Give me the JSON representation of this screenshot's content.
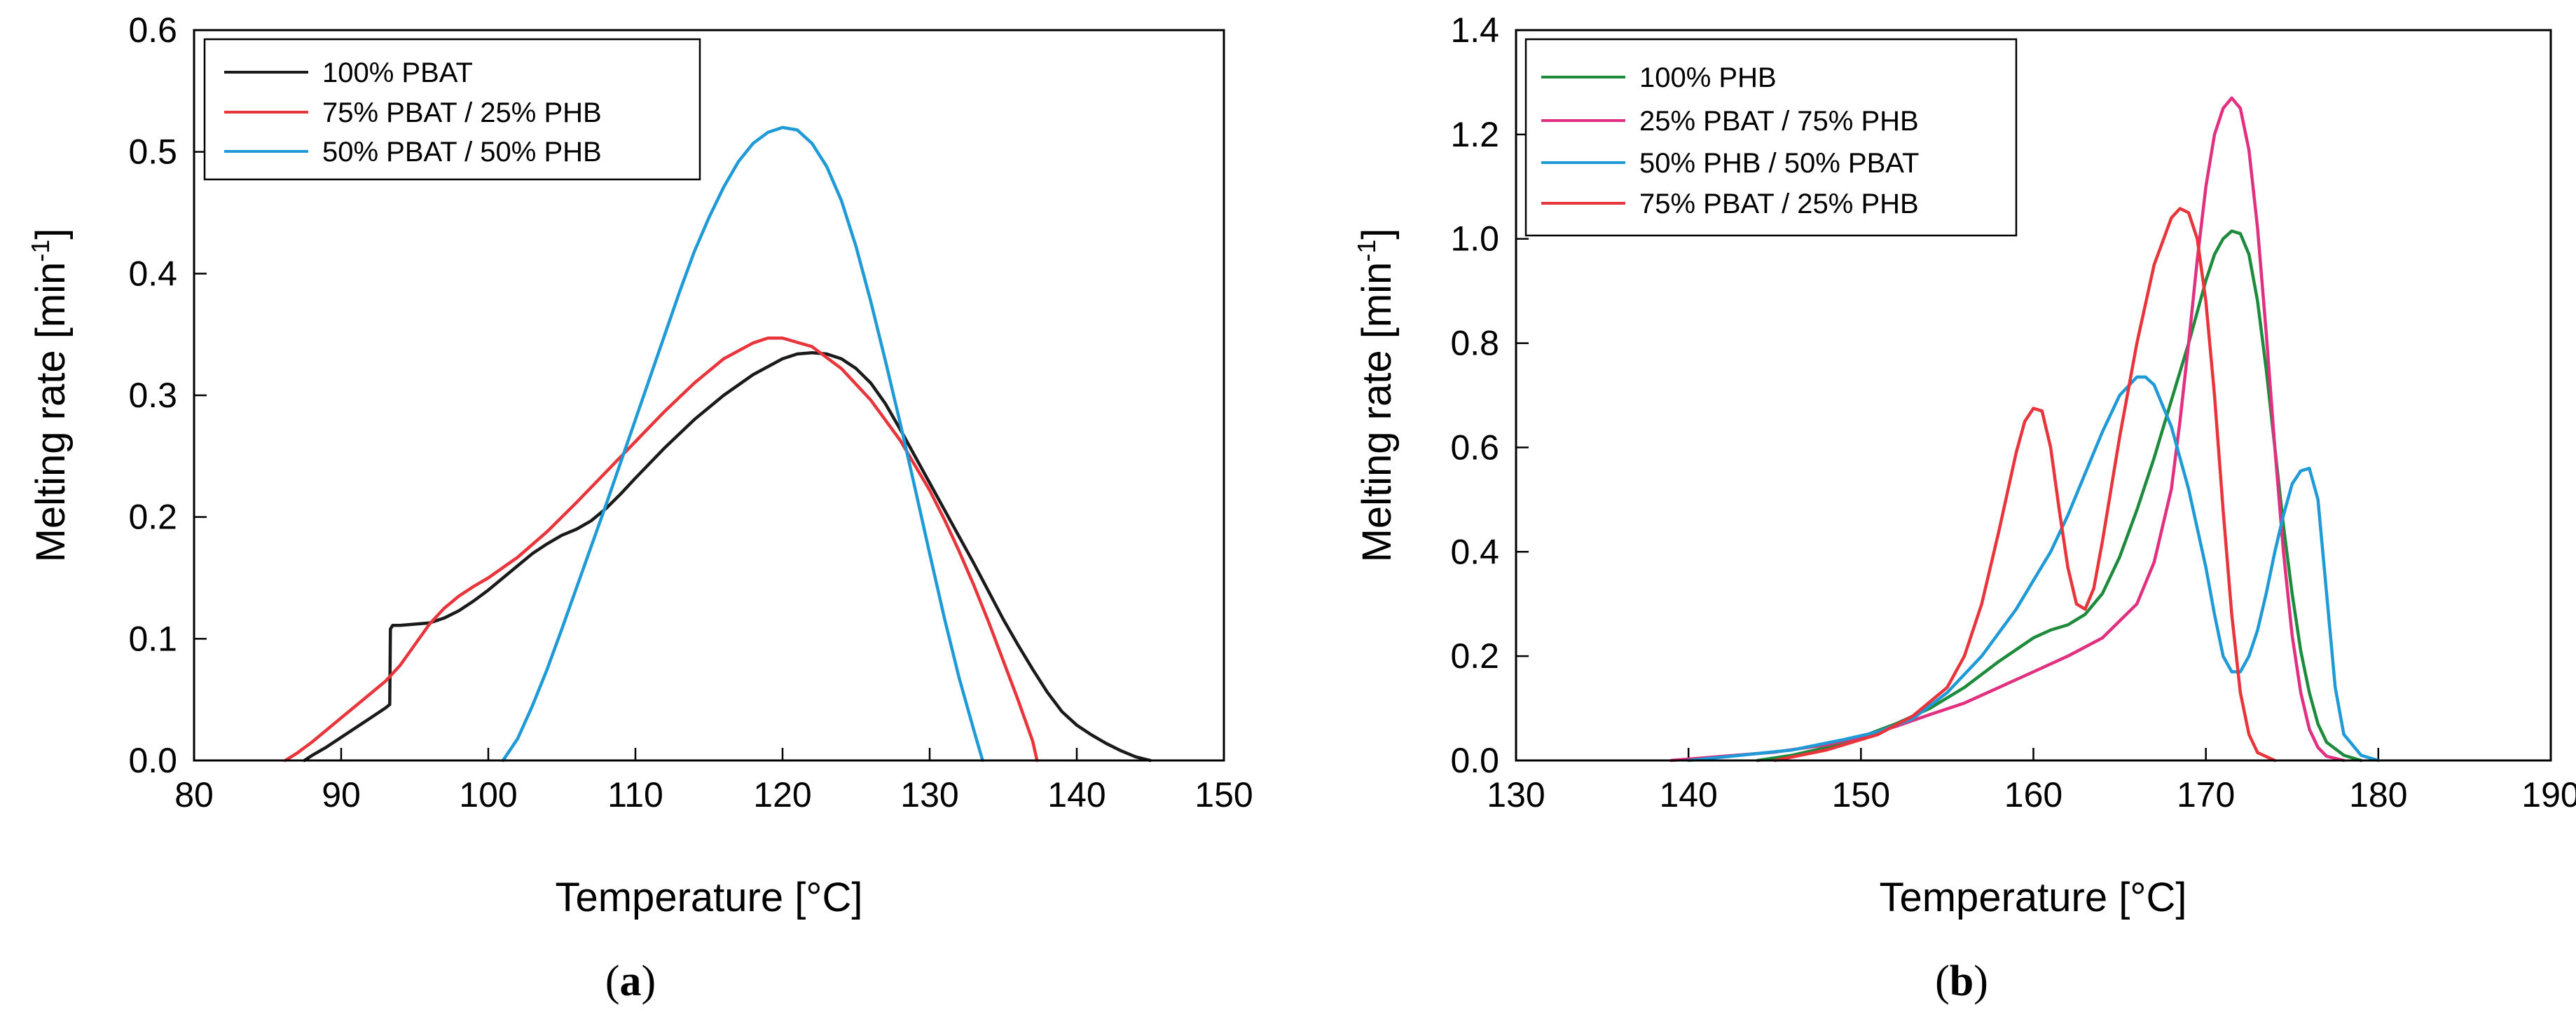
{
  "chart_data": [
    {
      "id": "a",
      "type": "line",
      "caption_open": "(",
      "caption_letter": "a",
      "caption_close": ")",
      "xlabel": "Temperature [°C]",
      "ylabel_main": "Melting rate [min",
      "ylabel_exp": "-1",
      "ylabel_close": "]",
      "xlim": [
        80,
        150
      ],
      "ylim": [
        0,
        0.6
      ],
      "xticks": [
        80,
        90,
        100,
        110,
        120,
        130,
        140,
        150
      ],
      "yticks": [
        0.0,
        0.1,
        0.2,
        0.3,
        0.4,
        0.5,
        0.6
      ],
      "ytick_decimals": 1,
      "legend_position": "top-left",
      "series": [
        {
          "name": "100% PBAT",
          "color": "#1a1a1a",
          "x": [
            87.5,
            88,
            89,
            90,
            91,
            92,
            93,
            93.3,
            93.35,
            93.5,
            94,
            95,
            96,
            97,
            98,
            99,
            100,
            101,
            102,
            103,
            104,
            105,
            106,
            107,
            108,
            109,
            110,
            112,
            114,
            116,
            118,
            120,
            121,
            122,
            123,
            124,
            125,
            126,
            127,
            128,
            129,
            130,
            131,
            132,
            133,
            134,
            135,
            136,
            137,
            138,
            139,
            140,
            141,
            142,
            143,
            144,
            145
          ],
          "y": [
            0.0,
            0.004,
            0.011,
            0.019,
            0.027,
            0.035,
            0.043,
            0.046,
            0.108,
            0.111,
            0.111,
            0.112,
            0.113,
            0.117,
            0.123,
            0.131,
            0.14,
            0.15,
            0.16,
            0.17,
            0.178,
            0.185,
            0.19,
            0.197,
            0.207,
            0.219,
            0.232,
            0.257,
            0.28,
            0.3,
            0.317,
            0.33,
            0.334,
            0.335,
            0.334,
            0.33,
            0.322,
            0.31,
            0.293,
            0.272,
            0.25,
            0.228,
            0.206,
            0.184,
            0.162,
            0.139,
            0.116,
            0.095,
            0.075,
            0.056,
            0.04,
            0.029,
            0.021,
            0.014,
            0.008,
            0.003,
            0.0
          ]
        },
        {
          "name": "75% PBAT / 25% PHB",
          "color": "#e8343b",
          "x": [
            86.2,
            87,
            88,
            89,
            90,
            91,
            92,
            93,
            94,
            95,
            96,
            97,
            98,
            99,
            100,
            102,
            104,
            106,
            108,
            110,
            112,
            114,
            116,
            118,
            119,
            120,
            122,
            124,
            126,
            128,
            130,
            131,
            132,
            133,
            134,
            135,
            136,
            137,
            137.3
          ],
          "y": [
            0.0,
            0.006,
            0.015,
            0.025,
            0.035,
            0.045,
            0.055,
            0.065,
            0.078,
            0.095,
            0.112,
            0.125,
            0.135,
            0.143,
            0.15,
            0.167,
            0.188,
            0.212,
            0.237,
            0.262,
            0.287,
            0.31,
            0.33,
            0.343,
            0.347,
            0.347,
            0.34,
            0.322,
            0.296,
            0.263,
            0.222,
            0.198,
            0.172,
            0.144,
            0.114,
            0.082,
            0.05,
            0.016,
            0.0
          ]
        },
        {
          "name": "50% PBAT / 50% PHB",
          "color": "#1f9ad6",
          "x": [
            101.0,
            102,
            103,
            104,
            105,
            106,
            107,
            108,
            109,
            110,
            111,
            112,
            113,
            114,
            115,
            116,
            117,
            118,
            119,
            120,
            121,
            122,
            123,
            124,
            125,
            126,
            127,
            128,
            129,
            130,
            131,
            132,
            133,
            133.6
          ],
          "y": [
            0.0,
            0.018,
            0.045,
            0.075,
            0.108,
            0.142,
            0.176,
            0.21,
            0.245,
            0.28,
            0.315,
            0.35,
            0.385,
            0.418,
            0.446,
            0.471,
            0.492,
            0.507,
            0.516,
            0.52,
            0.518,
            0.507,
            0.488,
            0.46,
            0.422,
            0.377,
            0.328,
            0.277,
            0.224,
            0.17,
            0.117,
            0.068,
            0.025,
            0.0
          ]
        }
      ]
    },
    {
      "id": "b",
      "type": "line",
      "caption_open": "(",
      "caption_letter": "b",
      "caption_close": ")",
      "xlabel": "Temperature [°C]",
      "ylabel_main": "Melting rate [min",
      "ylabel_exp": "-1",
      "ylabel_close": "]",
      "xlim": [
        130,
        190
      ],
      "ylim": [
        0,
        1.4
      ],
      "xticks": [
        130,
        140,
        150,
        160,
        170,
        180,
        190
      ],
      "yticks": [
        0.0,
        0.2,
        0.4,
        0.6,
        0.8,
        1.0,
        1.2,
        1.4
      ],
      "ytick_decimals": 1,
      "legend_position": "top-left",
      "series": [
        {
          "name": "100% PHB",
          "color": "#1e8a3c",
          "x": [
            144,
            146,
            148,
            150,
            152,
            154,
            156,
            158,
            160,
            161,
            162,
            163,
            164,
            165,
            166,
            167,
            168,
            169,
            170,
            170.5,
            171,
            171.5,
            172,
            172.5,
            173,
            173.5,
            174,
            174.5,
            175,
            175.5,
            176,
            176.5,
            177,
            178,
            179
          ],
          "y": [
            0.0,
            0.01,
            0.025,
            0.045,
            0.07,
            0.1,
            0.14,
            0.19,
            0.235,
            0.25,
            0.26,
            0.28,
            0.32,
            0.39,
            0.48,
            0.58,
            0.69,
            0.8,
            0.92,
            0.97,
            1.0,
            1.015,
            1.01,
            0.97,
            0.88,
            0.75,
            0.6,
            0.45,
            0.32,
            0.21,
            0.13,
            0.07,
            0.035,
            0.01,
            0.0
          ]
        },
        {
          "name": "25% PBAT / 75% PHB",
          "color": "#e0307f",
          "x": [
            139,
            142,
            145,
            148,
            150,
            152,
            154,
            156,
            158,
            160,
            162,
            164,
            166,
            167,
            168,
            168.5,
            169,
            169.5,
            170,
            170.5,
            171,
            171.5,
            172,
            172.5,
            173,
            173.5,
            174,
            174.5,
            175,
            175.5,
            176,
            176.5,
            177,
            178
          ],
          "y": [
            0.0,
            0.008,
            0.016,
            0.03,
            0.045,
            0.065,
            0.088,
            0.11,
            0.14,
            0.17,
            0.2,
            0.235,
            0.3,
            0.38,
            0.52,
            0.65,
            0.8,
            0.96,
            1.1,
            1.2,
            1.25,
            1.27,
            1.25,
            1.17,
            1.02,
            0.82,
            0.6,
            0.4,
            0.24,
            0.13,
            0.06,
            0.025,
            0.008,
            0.0
          ]
        },
        {
          "name": "50% PHB / 50% PBAT",
          "color": "#1f9ad6",
          "x": [
            140,
            143,
            146,
            149,
            151,
            153,
            155,
            157,
            159,
            161,
            162,
            163,
            164,
            165,
            166,
            166.5,
            167,
            168,
            169,
            170,
            170.5,
            171,
            171.5,
            172,
            172.5,
            173,
            173.5,
            174,
            174.5,
            175,
            175.5,
            176,
            176.5,
            177,
            177.5,
            178,
            179,
            180
          ],
          "y": [
            0.0,
            0.01,
            0.02,
            0.04,
            0.055,
            0.08,
            0.13,
            0.2,
            0.29,
            0.4,
            0.47,
            0.55,
            0.63,
            0.7,
            0.735,
            0.735,
            0.72,
            0.64,
            0.52,
            0.37,
            0.28,
            0.2,
            0.17,
            0.17,
            0.2,
            0.25,
            0.32,
            0.4,
            0.47,
            0.53,
            0.555,
            0.56,
            0.5,
            0.32,
            0.14,
            0.05,
            0.01,
            0.0
          ]
        },
        {
          "name": "75% PBAT / 25% PHB",
          "color": "#e8343b",
          "x": [
            145,
            148,
            151,
            153,
            155,
            156,
            157,
            158,
            159,
            159.5,
            160,
            160.5,
            161,
            161.5,
            162,
            162.5,
            163,
            163.5,
            164,
            165,
            166,
            167,
            168,
            168.5,
            169,
            169.5,
            170,
            170.5,
            171,
            171.5,
            172,
            172.5,
            173,
            174
          ],
          "y": [
            0.0,
            0.02,
            0.05,
            0.085,
            0.14,
            0.2,
            0.3,
            0.44,
            0.59,
            0.65,
            0.675,
            0.67,
            0.6,
            0.48,
            0.37,
            0.3,
            0.29,
            0.33,
            0.42,
            0.62,
            0.8,
            0.95,
            1.04,
            1.058,
            1.05,
            1.0,
            0.88,
            0.7,
            0.48,
            0.28,
            0.13,
            0.05,
            0.015,
            0.0
          ]
        }
      ]
    }
  ]
}
